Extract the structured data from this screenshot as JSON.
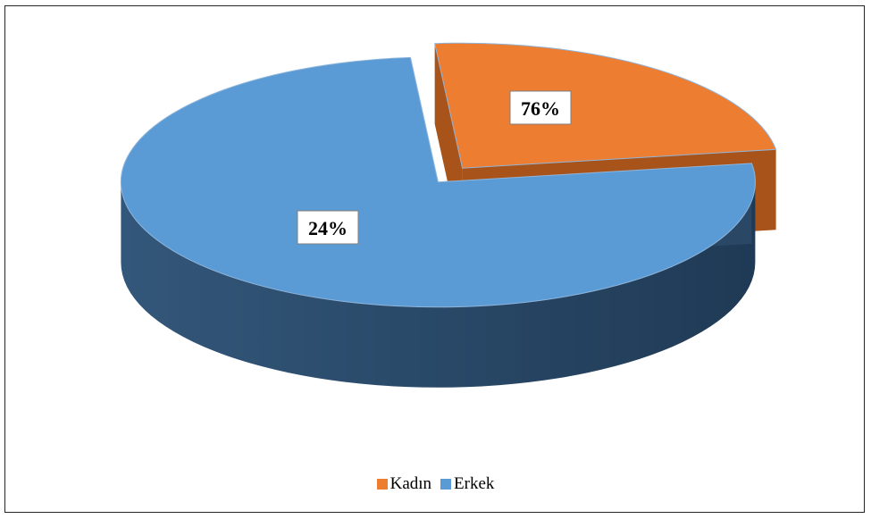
{
  "chart_data": {
    "type": "pie",
    "style": "3d-exploded",
    "categories": [
      "Kadın",
      "Erkek"
    ],
    "values": [
      24,
      76
    ],
    "value_labels": [
      "24%",
      "76%"
    ],
    "colors": [
      "#ED7D31",
      "#5B9BD5"
    ],
    "title": "",
    "legend": {
      "placement": "bottom",
      "entries": [
        {
          "name": "Kadın",
          "color": "#ED7D31"
        },
        {
          "name": "Erkek",
          "color": "#5B9BD5"
        }
      ]
    }
  }
}
